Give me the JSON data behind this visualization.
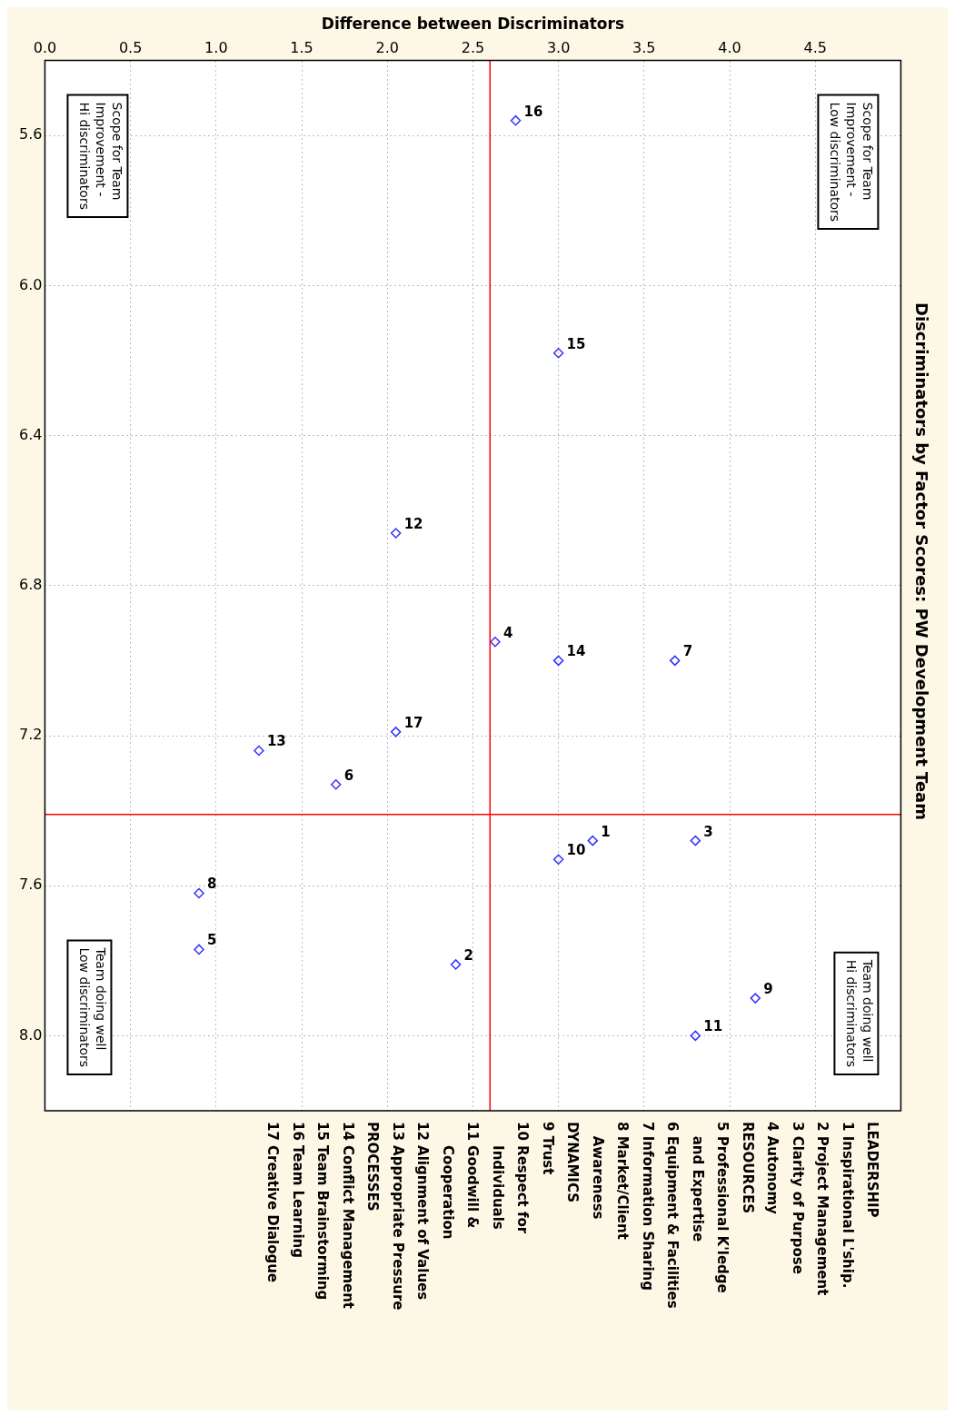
{
  "chart_data": {
    "type": "scatter",
    "title": "Discriminators by Factor Scores: PW Development Team",
    "xlabel": "Difference between Discriminators",
    "x": [
      2.75,
      3.0,
      2.05,
      2.63,
      3.0,
      3.68,
      2.05,
      1.25,
      1.7,
      3.2,
      3.8,
      3.0,
      0.9,
      0.9,
      2.4,
      4.15,
      3.8
    ],
    "series": [
      {
        "color": "#3333ff",
        "values": [
          5.56,
          6.18,
          6.66,
          6.95,
          7.0,
          7.0,
          7.19,
          7.24,
          7.33,
          7.48,
          7.48,
          7.53,
          7.62,
          7.77,
          7.81,
          7.9,
          8.0
        ]
      }
    ],
    "marker": "diamond",
    "grid": true,
    "legend": false,
    "ylim": [
      8.2,
      5.4
    ],
    "yticks": [
      {
        "value": 5.6,
        "label": "5.6"
      },
      {
        "value": 6.0,
        "label": "6.0"
      },
      {
        "value": 6.4,
        "label": "6.4"
      },
      {
        "value": 6.8,
        "label": "6.8"
      },
      {
        "value": 7.2,
        "label": "7.2"
      },
      {
        "value": 7.6,
        "label": "7.6"
      },
      {
        "value": 8.0,
        "label": "8.0"
      }
    ],
    "xlim": [
      0,
      5
    ],
    "xticks": [
      {
        "value": 0,
        "label": "0.0"
      },
      {
        "value": 0.5,
        "label": "0.5"
      },
      {
        "value": 1,
        "label": "1.0"
      },
      {
        "value": 1.5,
        "label": "1.5"
      },
      {
        "value": 2,
        "label": "2.0"
      },
      {
        "value": 2.5,
        "label": "2.5"
      },
      {
        "value": 3,
        "label": "3.0"
      },
      {
        "value": 3.5,
        "label": "3.5"
      },
      {
        "value": 4,
        "label": "4.0"
      },
      {
        "value": 4.5,
        "label": "4.5"
      }
    ],
    "ref_lines": [
      {
        "axis": "x",
        "value": 2.6,
        "color": "#ff0000"
      },
      {
        "axis": "y",
        "value": 7.41,
        "color": "#ff0000"
      }
    ],
    "annotations": [
      {
        "text": "16",
        "y": 5.56,
        "x": 2.75
      },
      {
        "text": "15",
        "y": 6.18,
        "x": 3.0
      },
      {
        "text": "12",
        "y": 6.66,
        "x": 2.05
      },
      {
        "text": "4",
        "y": 6.95,
        "x": 2.63
      },
      {
        "text": "14",
        "y": 7.0,
        "x": 3.0
      },
      {
        "text": "7",
        "y": 7.0,
        "x": 3.68
      },
      {
        "text": "17",
        "y": 7.19,
        "x": 2.05
      },
      {
        "text": "13",
        "y": 7.24,
        "x": 1.25
      },
      {
        "text": "6",
        "y": 7.33,
        "x": 1.7
      },
      {
        "text": "1",
        "y": 7.48,
        "x": 3.2
      },
      {
        "text": "3",
        "y": 7.48,
        "x": 3.8
      },
      {
        "text": "10",
        "y": 7.53,
        "x": 3.0
      },
      {
        "text": "8",
        "y": 7.62,
        "x": 0.9
      },
      {
        "text": "5",
        "y": 7.77,
        "x": 0.9
      },
      {
        "text": "2",
        "y": 7.81,
        "x": 2.4
      },
      {
        "text": "9",
        "y": 7.9,
        "x": 4.15
      },
      {
        "text": "11",
        "y": 8.0,
        "x": 3.8
      },
      "Scope for Team\nImprovement -\nLow discriminators",
      "Team doing well\nHi discriminators",
      "Scope for Team\nImprovement -\nHi discriminators",
      "Team doing well\nLow discriminators",
      "LEADERSHIP",
      "1 Inspirational L'ship.",
      "2 Project Management",
      "3 Clarity of Purpose",
      "4 Autonomy",
      "RESOURCES",
      "5 Professional K'ledge",
      "   and Expertise",
      "6 Equipment & Facilities",
      "7 Information Sharing",
      "8 Market/Client",
      "   Awareness",
      "DYNAMICS",
      "9 Trust",
      "10 Respect for",
      "     Individuals",
      "11 Goodwill &",
      "     Cooperation",
      "12 Alignment of Values",
      "13 Appropriate Pressure",
      "PROCESSES",
      "14 Conflict Management",
      "15 Team Brainstorming",
      "16 Team Learning",
      "17 Creative Dialogue"
    ]
  }
}
